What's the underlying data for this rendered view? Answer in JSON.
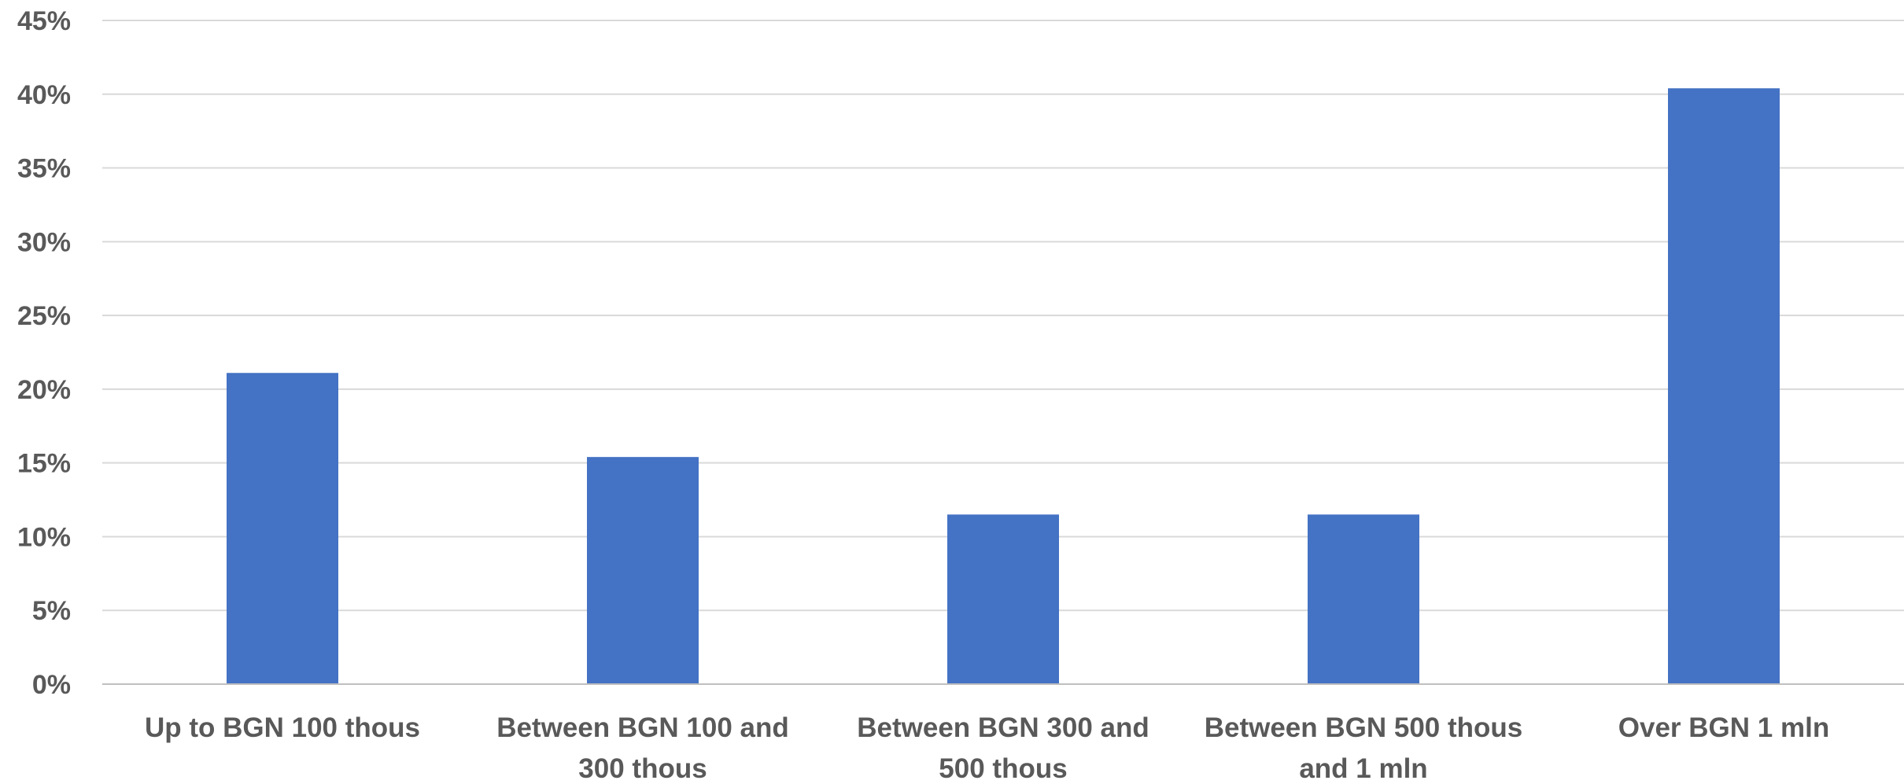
{
  "chart_data": {
    "type": "bar",
    "categories": [
      [
        "Up to BGN 100 thous"
      ],
      [
        "Between BGN 100 and",
        "300 thous"
      ],
      [
        "Between BGN 300 and",
        "500 thous"
      ],
      [
        "Between BGN 500 thous",
        "and 1 mln"
      ],
      [
        "Over BGN 1 mln"
      ]
    ],
    "values": [
      0.211,
      0.154,
      0.115,
      0.115,
      0.404
    ],
    "ylim": [
      0,
      0.45
    ],
    "yticks": [
      0,
      0.05,
      0.1,
      0.15,
      0.2,
      0.25,
      0.3,
      0.35,
      0.4,
      0.45
    ],
    "ytick_labels": [
      "0%",
      "5%",
      "10%",
      "15%",
      "20%",
      "25%",
      "30%",
      "35%",
      "40%",
      "45%"
    ],
    "title": "",
    "xlabel": "",
    "ylabel": "",
    "grid": true,
    "legend": "none",
    "colors": {
      "bar": "#4472C4",
      "grid": "#D9D9D9",
      "axis": "#BFBFBF",
      "text": "#595959"
    }
  }
}
